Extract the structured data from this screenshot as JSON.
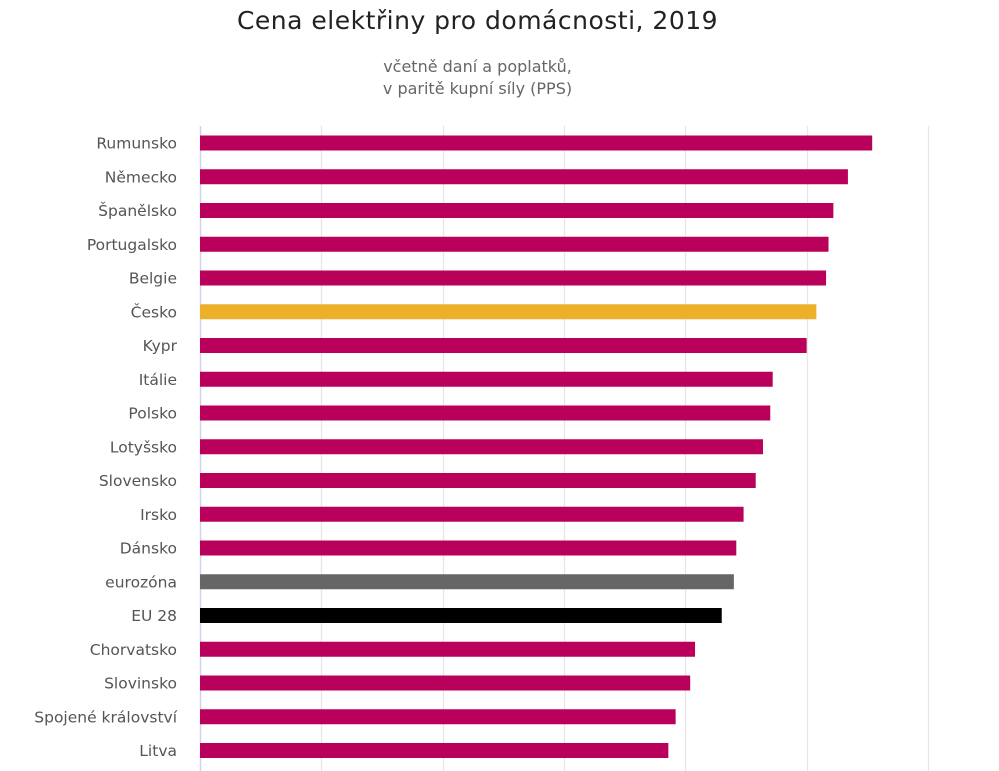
{
  "chart_data": {
    "type": "bar",
    "orientation": "horizontal",
    "title": "Cena elektřiny pro domácnosti, 2019",
    "subtitle_lines": [
      "včetně daní a poplatků,",
      "v paritě kupní síly (PPS)"
    ],
    "xlabel": "",
    "ylabel": "",
    "xlim": [
      0,
      0.3
    ],
    "grid": true,
    "gridlines": [
      0,
      0.05,
      0.1,
      0.15,
      0.2,
      0.25,
      0.3
    ],
    "tick_labels_visible": false,
    "legend": "none",
    "categories": [
      "Rumunsko",
      "Německo",
      "Španělsko",
      "Portugalsko",
      "Belgie",
      "Česko",
      "Kypr",
      "Itálie",
      "Polsko",
      "Lotyšsko",
      "Slovensko",
      "Irsko",
      "Dánsko",
      "eurozóna",
      "EU 28",
      "Chorvatsko",
      "Slovinsko",
      "Spojené království",
      "Litva"
    ],
    "values": [
      0.277,
      0.267,
      0.261,
      0.259,
      0.258,
      0.254,
      0.25,
      0.236,
      0.235,
      0.232,
      0.229,
      0.224,
      0.221,
      0.22,
      0.215,
      0.204,
      0.202,
      0.196,
      0.193
    ],
    "bar_colors": [
      "#b9005a",
      "#b9005a",
      "#b9005a",
      "#b9005a",
      "#b9005a",
      "#ecb02a",
      "#b9005a",
      "#b9005a",
      "#b9005a",
      "#b9005a",
      "#b9005a",
      "#b9005a",
      "#b9005a",
      "#666666",
      "#000000",
      "#b9005a",
      "#b9005a",
      "#b9005a",
      "#b9005a"
    ]
  },
  "colors": {
    "default_bar": "#b9005a",
    "highlight_bar": "#ecb02a",
    "eurozone_bar": "#666666",
    "eu_bar": "#000000",
    "gridline": "#e6e6e6",
    "axis": "#ccd6eb"
  }
}
